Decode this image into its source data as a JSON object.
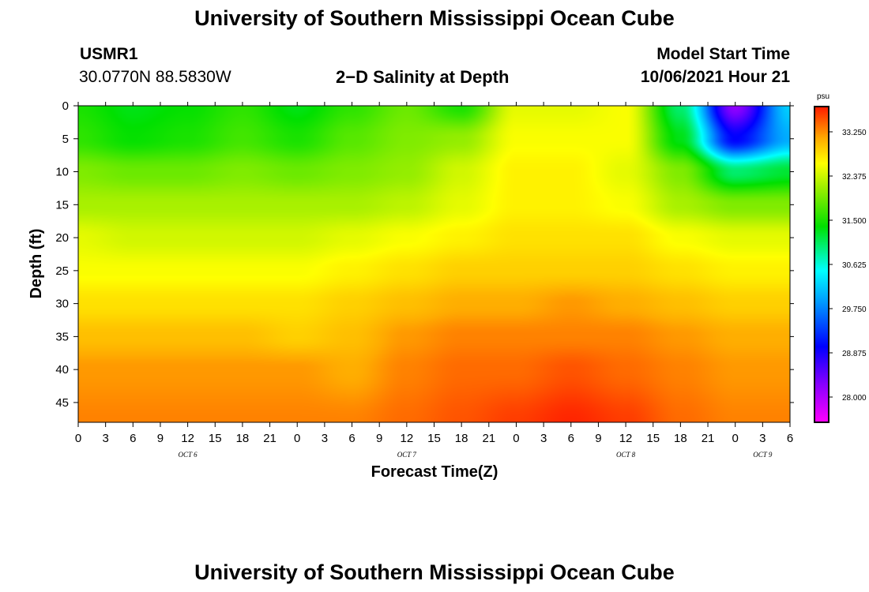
{
  "header": {
    "title_top": "University of Southern Mississippi Ocean Cube",
    "title_bottom": "University of Southern Mississippi Ocean Cube",
    "station_id": "USMR1",
    "station_coords": "30.0770N  88.5830W",
    "chart_title": "2−D Salinity at Depth",
    "model_start_label": "Model Start Time",
    "model_start_value": "10/06/2021 Hour 21"
  },
  "chart_data": {
    "type": "heatmap",
    "title": "2−D Salinity at Depth",
    "xlabel": "Forecast Time(Z)",
    "ylabel": "Depth (ft)",
    "x_tick_labels": [
      "0",
      "3",
      "6",
      "9",
      "12",
      "15",
      "18",
      "21",
      "0",
      "3",
      "6",
      "9",
      "12",
      "15",
      "18",
      "21",
      "0",
      "3",
      "6",
      "9",
      "12",
      "15",
      "18",
      "21",
      "0",
      "3",
      "6"
    ],
    "x_range_hours": [
      0,
      78
    ],
    "day_labels": [
      {
        "text": "OCT 6",
        "hour": 12
      },
      {
        "text": "OCT 7",
        "hour": 36
      },
      {
        "text": "OCT 8",
        "hour": 60
      },
      {
        "text": "OCT 9",
        "hour": 75
      }
    ],
    "y_ticks": [
      0,
      5,
      10,
      15,
      20,
      25,
      30,
      35,
      40,
      45
    ],
    "y_range": [
      0,
      48
    ],
    "colorbar": {
      "unit": "psu",
      "ticks": [
        "33.250",
        "32.375",
        "31.500",
        "30.625",
        "29.750",
        "28.875",
        "28.000"
      ],
      "tick_values": [
        33.25,
        32.375,
        31.5,
        30.625,
        29.75,
        28.875,
        28.0
      ],
      "range": [
        27.5,
        33.75
      ]
    },
    "field": {
      "hours": [
        0,
        6,
        12,
        18,
        24,
        30,
        36,
        42,
        48,
        54,
        60,
        66,
        72,
        78
      ],
      "depths": [
        0,
        5,
        10,
        15,
        20,
        25,
        30,
        35,
        40,
        48
      ],
      "values": [
        [
          31.5,
          31.3,
          31.4,
          31.6,
          31.3,
          31.6,
          31.9,
          31.5,
          32.5,
          32.5,
          32.6,
          31.0,
          28.2,
          30.2
        ],
        [
          31.6,
          31.4,
          31.5,
          31.7,
          31.5,
          31.8,
          32.0,
          32.1,
          32.6,
          32.6,
          32.6,
          31.3,
          29.0,
          30.0
        ],
        [
          32.0,
          31.9,
          31.9,
          32.0,
          31.9,
          32.0,
          32.1,
          32.4,
          32.7,
          32.7,
          32.5,
          32.0,
          31.0,
          31.2
        ],
        [
          32.2,
          32.2,
          32.2,
          32.2,
          32.2,
          32.2,
          32.3,
          32.5,
          32.7,
          32.7,
          32.6,
          32.2,
          32.0,
          32.0
        ],
        [
          32.5,
          32.4,
          32.4,
          32.4,
          32.4,
          32.5,
          32.6,
          32.7,
          32.8,
          32.8,
          32.8,
          32.6,
          32.5,
          32.5
        ],
        [
          32.6,
          32.6,
          32.6,
          32.6,
          32.6,
          32.7,
          32.8,
          32.9,
          32.9,
          32.9,
          32.9,
          32.8,
          32.7,
          32.7
        ],
        [
          32.8,
          32.8,
          32.8,
          32.8,
          32.8,
          32.9,
          33.0,
          33.1,
          33.1,
          33.2,
          33.1,
          33.0,
          32.9,
          32.9
        ],
        [
          33.0,
          33.0,
          33.0,
          33.0,
          32.9,
          33.0,
          33.2,
          33.3,
          33.3,
          33.3,
          33.3,
          33.2,
          33.1,
          33.1
        ],
        [
          33.2,
          33.2,
          33.2,
          33.2,
          33.2,
          33.1,
          33.3,
          33.4,
          33.4,
          33.5,
          33.4,
          33.3,
          33.2,
          33.2
        ],
        [
          33.3,
          33.3,
          33.3,
          33.3,
          33.3,
          33.3,
          33.4,
          33.5,
          33.6,
          33.7,
          33.6,
          33.4,
          33.3,
          33.3
        ]
      ]
    }
  }
}
